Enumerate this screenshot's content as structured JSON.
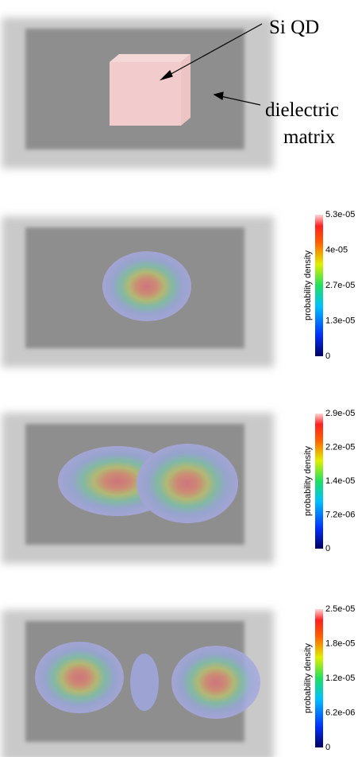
{
  "panels": [
    {
      "annotations": [
        "Si QD",
        "dielectric",
        "matrix"
      ]
    },
    {
      "colorbar": {
        "title": "probability density",
        "ticks": [
          "5.3e-05",
          "4e-05",
          "2.7e-05",
          "1.3e-05",
          "0"
        ]
      }
    },
    {
      "colorbar": {
        "title": "probability density",
        "ticks": [
          "2.9e-05",
          "2.2e-05",
          "1.4e-05",
          "7.2e-06",
          "0"
        ]
      }
    },
    {
      "colorbar": {
        "title": "probability density",
        "ticks": [
          "2.5e-05",
          "1.8e-05",
          "1.2e-05",
          "6.2e-06",
          "0"
        ]
      }
    }
  ]
}
